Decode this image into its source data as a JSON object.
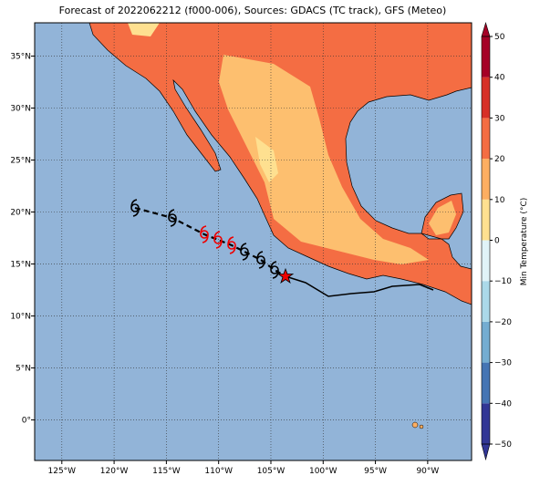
{
  "title": "Forecast of 2022062212 (f000-006), Sources: GDACS (TC track), GFS (Meteo)",
  "map": {
    "lonlim": [
      -127.6,
      -85.8
    ],
    "latlim": [
      -3.9,
      38.2
    ],
    "lon_ticks": [
      {
        "value": -125,
        "label": "125°W"
      },
      {
        "value": -120,
        "label": "120°W"
      },
      {
        "value": -115,
        "label": "115°W"
      },
      {
        "value": -110,
        "label": "110°W"
      },
      {
        "value": -105,
        "label": "105°W"
      },
      {
        "value": -100,
        "label": "100°W"
      },
      {
        "value": -95,
        "label": "95°W"
      },
      {
        "value": -90,
        "label": "90°W"
      }
    ],
    "lat_ticks": [
      {
        "value": 0,
        "label": "0°"
      },
      {
        "value": 5,
        "label": "5°N"
      },
      {
        "value": 10,
        "label": "10°N"
      },
      {
        "value": 15,
        "label": "15°N"
      },
      {
        "value": 20,
        "label": "20°N"
      },
      {
        "value": 25,
        "label": "25°N"
      },
      {
        "value": 30,
        "label": "30°N"
      },
      {
        "value": 35,
        "label": "35°N"
      }
    ],
    "grid": true
  },
  "colorbar": {
    "label": "Min Temperature (°C)",
    "lim": [
      -50,
      50
    ],
    "ticks": [
      {
        "value": -50,
        "label": "−50"
      },
      {
        "value": -40,
        "label": "−40"
      },
      {
        "value": -30,
        "label": "−30"
      },
      {
        "value": -20,
        "label": "−20"
      },
      {
        "value": -10,
        "label": "−10"
      },
      0,
      10,
      20,
      30,
      40,
      50
    ],
    "colors": [
      "#313695",
      "#4575b4",
      "#74add1",
      "#abd9e9",
      "#e0f3f8",
      "#fee090",
      "#fdae61",
      "#f46d43",
      "#d73027",
      "#a50026"
    ]
  }
}
